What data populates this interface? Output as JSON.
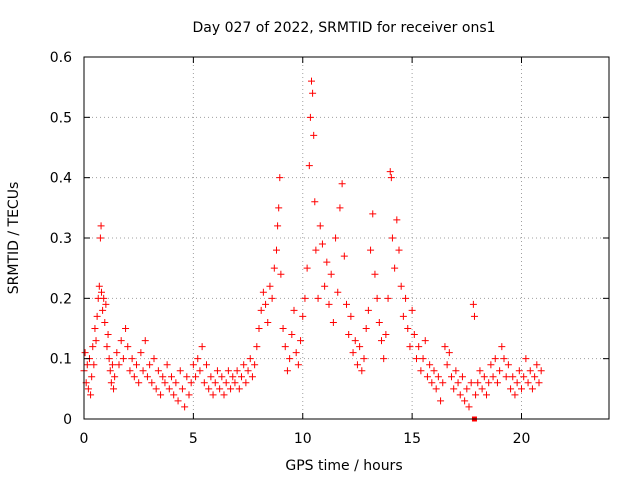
{
  "chart_data": {
    "type": "scatter",
    "title": "Day 027 of 2022, SRMTID for receiver ons1",
    "xlabel": "GPS time / hours",
    "ylabel": "SRMTID / TECUs",
    "xlim": [
      0,
      24
    ],
    "ylim": [
      0,
      0.6
    ],
    "grid": true,
    "marker": "plus",
    "color": "#ff0000",
    "x_ticks": [
      {
        "value": 0,
        "label": "0"
      },
      {
        "value": 5,
        "label": "5"
      },
      {
        "value": 10,
        "label": "10"
      },
      {
        "value": 15,
        "label": "15"
      },
      {
        "value": 20,
        "label": "20"
      }
    ],
    "y_ticks": [
      {
        "value": 0,
        "label": "0"
      },
      {
        "value": 0.1,
        "label": "0.1"
      },
      {
        "value": 0.2,
        "label": "0.2"
      },
      {
        "value": 0.3,
        "label": "0.3"
      },
      {
        "value": 0.4,
        "label": "0.4"
      },
      {
        "value": 0.5,
        "label": "0.5"
      },
      {
        "value": 0.6,
        "label": "0.6"
      }
    ],
    "series": [
      {
        "name": "ons1",
        "points": [
          [
            0.0,
            0.08
          ],
          [
            0.05,
            0.11
          ],
          [
            0.1,
            0.06
          ],
          [
            0.15,
            0.09
          ],
          [
            0.2,
            0.05
          ],
          [
            0.25,
            0.1
          ],
          [
            0.3,
            0.04
          ],
          [
            0.35,
            0.07
          ],
          [
            0.4,
            0.12
          ],
          [
            0.45,
            0.09
          ],
          [
            0.5,
            0.15
          ],
          [
            0.55,
            0.13
          ],
          [
            0.6,
            0.17
          ],
          [
            0.65,
            0.2
          ],
          [
            0.7,
            0.22
          ],
          [
            0.75,
            0.3
          ],
          [
            0.78,
            0.32
          ],
          [
            0.8,
            0.21
          ],
          [
            0.85,
            0.18
          ],
          [
            0.9,
            0.2
          ],
          [
            0.95,
            0.16
          ],
          [
            1.0,
            0.19
          ],
          [
            1.05,
            0.12
          ],
          [
            1.1,
            0.14
          ],
          [
            1.15,
            0.1
          ],
          [
            1.2,
            0.08
          ],
          [
            1.25,
            0.06
          ],
          [
            1.3,
            0.09
          ],
          [
            1.35,
            0.05
          ],
          [
            1.4,
            0.07
          ],
          [
            1.5,
            0.11
          ],
          [
            1.6,
            0.09
          ],
          [
            1.7,
            0.13
          ],
          [
            1.8,
            0.1
          ],
          [
            1.9,
            0.15
          ],
          [
            2.0,
            0.12
          ],
          [
            2.1,
            0.08
          ],
          [
            2.2,
            0.1
          ],
          [
            2.3,
            0.07
          ],
          [
            2.4,
            0.09
          ],
          [
            2.5,
            0.06
          ],
          [
            2.6,
            0.11
          ],
          [
            2.7,
            0.08
          ],
          [
            2.8,
            0.13
          ],
          [
            2.9,
            0.07
          ],
          [
            3.0,
            0.09
          ],
          [
            3.1,
            0.06
          ],
          [
            3.2,
            0.1
          ],
          [
            3.3,
            0.05
          ],
          [
            3.4,
            0.08
          ],
          [
            3.5,
            0.04
          ],
          [
            3.6,
            0.07
          ],
          [
            3.7,
            0.06
          ],
          [
            3.8,
            0.09
          ],
          [
            3.9,
            0.05
          ],
          [
            4.0,
            0.07
          ],
          [
            4.1,
            0.04
          ],
          [
            4.2,
            0.06
          ],
          [
            4.3,
            0.03
          ],
          [
            4.4,
            0.08
          ],
          [
            4.5,
            0.05
          ],
          [
            4.6,
            0.02
          ],
          [
            4.7,
            0.07
          ],
          [
            4.8,
            0.04
          ],
          [
            4.9,
            0.06
          ],
          [
            5.0,
            0.09
          ],
          [
            5.1,
            0.07
          ],
          [
            5.2,
            0.1
          ],
          [
            5.3,
            0.08
          ],
          [
            5.4,
            0.12
          ],
          [
            5.5,
            0.06
          ],
          [
            5.6,
            0.09
          ],
          [
            5.7,
            0.05
          ],
          [
            5.8,
            0.07
          ],
          [
            5.9,
            0.04
          ],
          [
            6.0,
            0.06
          ],
          [
            6.1,
            0.08
          ],
          [
            6.2,
            0.05
          ],
          [
            6.3,
            0.07
          ],
          [
            6.4,
            0.04
          ],
          [
            6.5,
            0.06
          ],
          [
            6.6,
            0.08
          ],
          [
            6.7,
            0.05
          ],
          [
            6.8,
            0.07
          ],
          [
            6.9,
            0.06
          ],
          [
            7.0,
            0.08
          ],
          [
            7.1,
            0.05
          ],
          [
            7.2,
            0.07
          ],
          [
            7.3,
            0.09
          ],
          [
            7.4,
            0.06
          ],
          [
            7.5,
            0.08
          ],
          [
            7.6,
            0.1
          ],
          [
            7.7,
            0.07
          ],
          [
            7.8,
            0.09
          ],
          [
            7.9,
            0.12
          ],
          [
            8.0,
            0.15
          ],
          [
            8.1,
            0.18
          ],
          [
            8.2,
            0.21
          ],
          [
            8.3,
            0.19
          ],
          [
            8.4,
            0.16
          ],
          [
            8.5,
            0.22
          ],
          [
            8.6,
            0.2
          ],
          [
            8.7,
            0.25
          ],
          [
            8.8,
            0.28
          ],
          [
            8.85,
            0.32
          ],
          [
            8.9,
            0.35
          ],
          [
            8.95,
            0.4
          ],
          [
            9.0,
            0.24
          ],
          [
            9.1,
            0.15
          ],
          [
            9.2,
            0.12
          ],
          [
            9.3,
            0.08
          ],
          [
            9.4,
            0.1
          ],
          [
            9.5,
            0.14
          ],
          [
            9.6,
            0.18
          ],
          [
            9.7,
            0.11
          ],
          [
            9.8,
            0.09
          ],
          [
            9.9,
            0.13
          ],
          [
            10.0,
            0.17
          ],
          [
            10.1,
            0.2
          ],
          [
            10.2,
            0.25
          ],
          [
            10.3,
            0.42
          ],
          [
            10.35,
            0.5
          ],
          [
            10.4,
            0.56
          ],
          [
            10.45,
            0.54
          ],
          [
            10.5,
            0.47
          ],
          [
            10.55,
            0.36
          ],
          [
            10.6,
            0.28
          ],
          [
            10.7,
            0.2
          ],
          [
            10.8,
            0.32
          ],
          [
            10.9,
            0.29
          ],
          [
            11.0,
            0.22
          ],
          [
            11.1,
            0.26
          ],
          [
            11.2,
            0.19
          ],
          [
            11.3,
            0.24
          ],
          [
            11.4,
            0.16
          ],
          [
            11.5,
            0.3
          ],
          [
            11.6,
            0.21
          ],
          [
            11.7,
            0.35
          ],
          [
            11.8,
            0.39
          ],
          [
            11.9,
            0.27
          ],
          [
            12.0,
            0.19
          ],
          [
            12.1,
            0.14
          ],
          [
            12.2,
            0.17
          ],
          [
            12.3,
            0.11
          ],
          [
            12.4,
            0.13
          ],
          [
            12.5,
            0.09
          ],
          [
            12.6,
            0.12
          ],
          [
            12.7,
            0.08
          ],
          [
            12.8,
            0.1
          ],
          [
            12.9,
            0.15
          ],
          [
            13.0,
            0.18
          ],
          [
            13.1,
            0.28
          ],
          [
            13.2,
            0.34
          ],
          [
            13.3,
            0.24
          ],
          [
            13.4,
            0.2
          ],
          [
            13.5,
            0.16
          ],
          [
            13.6,
            0.13
          ],
          [
            13.7,
            0.1
          ],
          [
            13.8,
            0.14
          ],
          [
            13.9,
            0.2
          ],
          [
            14.0,
            0.41
          ],
          [
            14.05,
            0.4
          ],
          [
            14.1,
            0.3
          ],
          [
            14.2,
            0.25
          ],
          [
            14.3,
            0.33
          ],
          [
            14.4,
            0.28
          ],
          [
            14.5,
            0.22
          ],
          [
            14.6,
            0.17
          ],
          [
            14.7,
            0.2
          ],
          [
            14.8,
            0.15
          ],
          [
            14.9,
            0.12
          ],
          [
            15.0,
            0.18
          ],
          [
            15.1,
            0.14
          ],
          [
            15.2,
            0.1
          ],
          [
            15.3,
            0.12
          ],
          [
            15.4,
            0.08
          ],
          [
            15.5,
            0.1
          ],
          [
            15.6,
            0.13
          ],
          [
            15.7,
            0.07
          ],
          [
            15.8,
            0.09
          ],
          [
            15.9,
            0.06
          ],
          [
            16.0,
            0.08
          ],
          [
            16.1,
            0.05
          ],
          [
            16.2,
            0.07
          ],
          [
            16.3,
            0.03
          ],
          [
            16.4,
            0.06
          ],
          [
            16.5,
            0.12
          ],
          [
            16.6,
            0.09
          ],
          [
            16.7,
            0.11
          ],
          [
            16.8,
            0.07
          ],
          [
            16.9,
            0.05
          ],
          [
            17.0,
            0.08
          ],
          [
            17.1,
            0.06
          ],
          [
            17.2,
            0.04
          ],
          [
            17.3,
            0.07
          ],
          [
            17.4,
            0.03
          ],
          [
            17.5,
            0.05
          ],
          [
            17.6,
            0.02
          ],
          [
            17.7,
            0.06
          ],
          [
            17.8,
            0.19
          ],
          [
            17.85,
            0.17
          ],
          [
            17.9,
            0.04
          ],
          [
            18.0,
            0.06
          ],
          [
            18.1,
            0.08
          ],
          [
            18.2,
            0.05
          ],
          [
            18.3,
            0.07
          ],
          [
            18.4,
            0.04
          ],
          [
            18.5,
            0.06
          ],
          [
            18.6,
            0.09
          ],
          [
            18.7,
            0.07
          ],
          [
            18.8,
            0.1
          ],
          [
            18.9,
            0.06
          ],
          [
            19.0,
            0.08
          ],
          [
            19.1,
            0.12
          ],
          [
            19.2,
            0.1
          ],
          [
            19.3,
            0.07
          ],
          [
            19.4,
            0.09
          ],
          [
            19.5,
            0.05
          ],
          [
            19.6,
            0.07
          ],
          [
            19.7,
            0.04
          ],
          [
            19.8,
            0.06
          ],
          [
            19.9,
            0.08
          ],
          [
            20.0,
            0.05
          ],
          [
            20.1,
            0.07
          ],
          [
            20.2,
            0.1
          ],
          [
            20.3,
            0.06
          ],
          [
            20.4,
            0.08
          ],
          [
            20.5,
            0.05
          ],
          [
            20.6,
            0.07
          ],
          [
            20.7,
            0.09
          ],
          [
            20.8,
            0.06
          ],
          [
            20.9,
            0.08
          ]
        ]
      }
    ],
    "marked_points": [
      [
        17.85,
        0.0
      ]
    ]
  }
}
